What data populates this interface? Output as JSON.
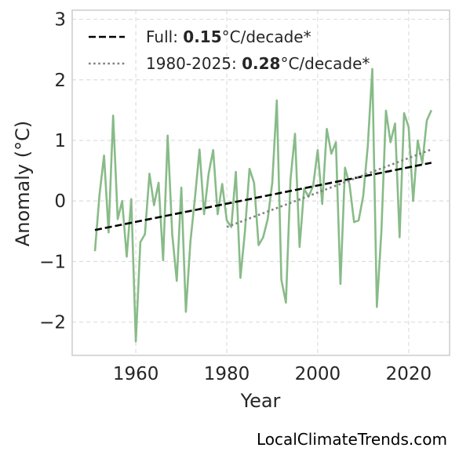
{
  "chart_data": {
    "type": "line",
    "xlabel": "Year",
    "ylabel": "Anomaly (°C)",
    "xlim": [
      1946,
      2029
    ],
    "ylim": [
      -2.55,
      3.15
    ],
    "xticks": [
      1960,
      1980,
      2000,
      2020
    ],
    "yticks": [
      -2,
      -1,
      0,
      1,
      2,
      3
    ],
    "ytick_labels": [
      "−2",
      "−1",
      "0",
      "1",
      "2",
      "3"
    ],
    "grid": true,
    "legend_position": "top-left",
    "series": [
      {
        "style": "solid",
        "color": "#88bb88",
        "x": [
          1951,
          1952,
          1953,
          1954,
          1955,
          1956,
          1957,
          1958,
          1959,
          1960,
          1961,
          1962,
          1963,
          1964,
          1965,
          1966,
          1967,
          1968,
          1969,
          1970,
          1971,
          1972,
          1973,
          1974,
          1975,
          1976,
          1977,
          1978,
          1979,
          1980,
          1981,
          1982,
          1983,
          1984,
          1985,
          1986,
          1987,
          1988,
          1989,
          1990,
          1991,
          1992,
          1993,
          1994,
          1995,
          1996,
          1997,
          1998,
          1999,
          2000,
          2001,
          2002,
          2003,
          2004,
          2005,
          2006,
          2007,
          2008,
          2009,
          2010,
          2011,
          2012,
          2013,
          2014,
          2015,
          2016,
          2017,
          2018,
          2019,
          2020,
          2021,
          2022,
          2023,
          2024,
          2025
        ],
        "y": [
          -0.83,
          0.1,
          0.75,
          -0.52,
          1.41,
          -0.3,
          0.0,
          -0.92,
          0.03,
          -2.32,
          -0.68,
          -0.55,
          0.45,
          -0.07,
          0.3,
          -0.98,
          1.08,
          -0.55,
          -1.32,
          0.22,
          -1.83,
          -0.67,
          0.05,
          0.85,
          -0.22,
          0.45,
          0.84,
          -0.22,
          0.28,
          -0.32,
          -0.43,
          0.48,
          -1.27,
          -0.5,
          0.53,
          0.3,
          -0.73,
          -0.6,
          -0.3,
          0.3,
          1.66,
          -1.3,
          -1.68,
          0.35,
          1.11,
          -0.76,
          0.2,
          0.07,
          0.25,
          0.84,
          -0.05,
          1.19,
          0.78,
          0.97,
          -1.37,
          0.55,
          0.27,
          -0.35,
          -0.32,
          0.08,
          0.9,
          2.18,
          -1.75,
          -0.5,
          1.49,
          0.97,
          1.28,
          -0.6,
          1.45,
          1.22,
          0.0,
          1.0,
          0.62,
          1.33,
          1.5
        ]
      },
      {
        "name": "Full: 0.15°C/decade*",
        "style": "dashed",
        "color": "#000000",
        "x": [
          1951,
          2025
        ],
        "y": [
          -0.48,
          0.63
        ]
      },
      {
        "name": "1980-2025: 0.28°C/decade*",
        "style": "dotted",
        "color": "#808080",
        "x": [
          1980,
          2025
        ],
        "y": [
          -0.43,
          0.85
        ]
      }
    ]
  },
  "legend": {
    "full_prefix": "Full: ",
    "full_rate": "0.15",
    "full_suffix": "°C/decade*",
    "recent_prefix": "1980-2025: ",
    "recent_rate": "0.28",
    "recent_suffix": "°C/decade*"
  },
  "credit": "LocalClimateTrends.com"
}
